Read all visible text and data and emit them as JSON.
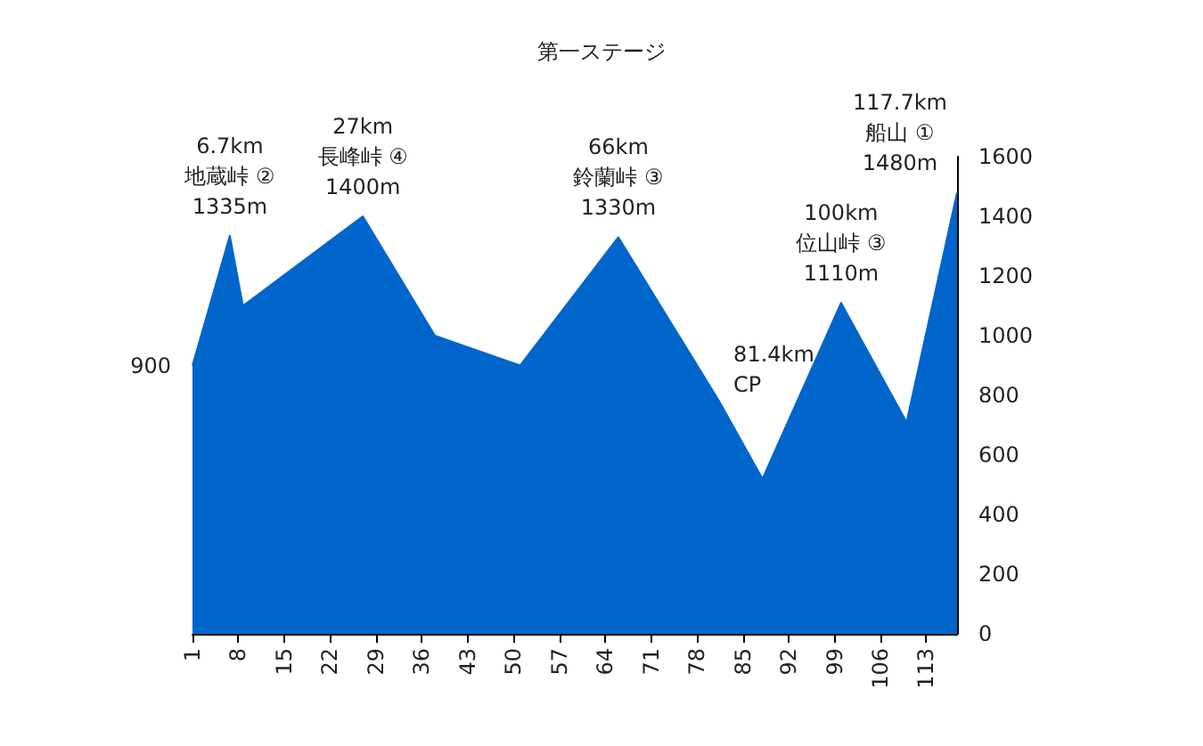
{
  "chart_data": {
    "type": "area",
    "title": "第一ステージ",
    "x": [
      1,
      6.7,
      8.7,
      27,
      38,
      51,
      66,
      81.4,
      88,
      100,
      110,
      117.7
    ],
    "series": [
      {
        "color": "#0066cc",
        "values": [
          900,
          1335,
          1100,
          1400,
          1000,
          900,
          1330,
          780,
          520,
          1110,
          710,
          1480
        ]
      }
    ],
    "xlim": [
      1,
      117.7
    ],
    "xticks": [
      1,
      8,
      15,
      22,
      29,
      36,
      43,
      50,
      57,
      64,
      71,
      78,
      85,
      92,
      99,
      106,
      113
    ],
    "ylim": [
      0,
      1600
    ],
    "yticks": [
      0,
      200,
      400,
      600,
      800,
      1000,
      1200,
      1400,
      1600
    ],
    "grid": false,
    "annotations": [
      {
        "text": "900",
        "x": 1,
        "y": 900
      },
      {
        "text": "6.7km\n地蔵峠 ②\n1335m",
        "x": 6.7,
        "y": 1335
      },
      {
        "text": "27km\n長峰峠 ④\n1400m",
        "x": 27,
        "y": 1400
      },
      {
        "text": "66km\n鈴蘭峠 ③\n1330m",
        "x": 66,
        "y": 1330
      },
      {
        "text": "81.4km\nCP",
        "x": 81.4,
        "y": 780
      },
      {
        "text": "100km\n位山峠 ③\n1110m",
        "x": 100,
        "y": 1110
      },
      {
        "text": "117.7km\n船山 ①\n1480m",
        "x": 117.7,
        "y": 1480
      }
    ]
  }
}
